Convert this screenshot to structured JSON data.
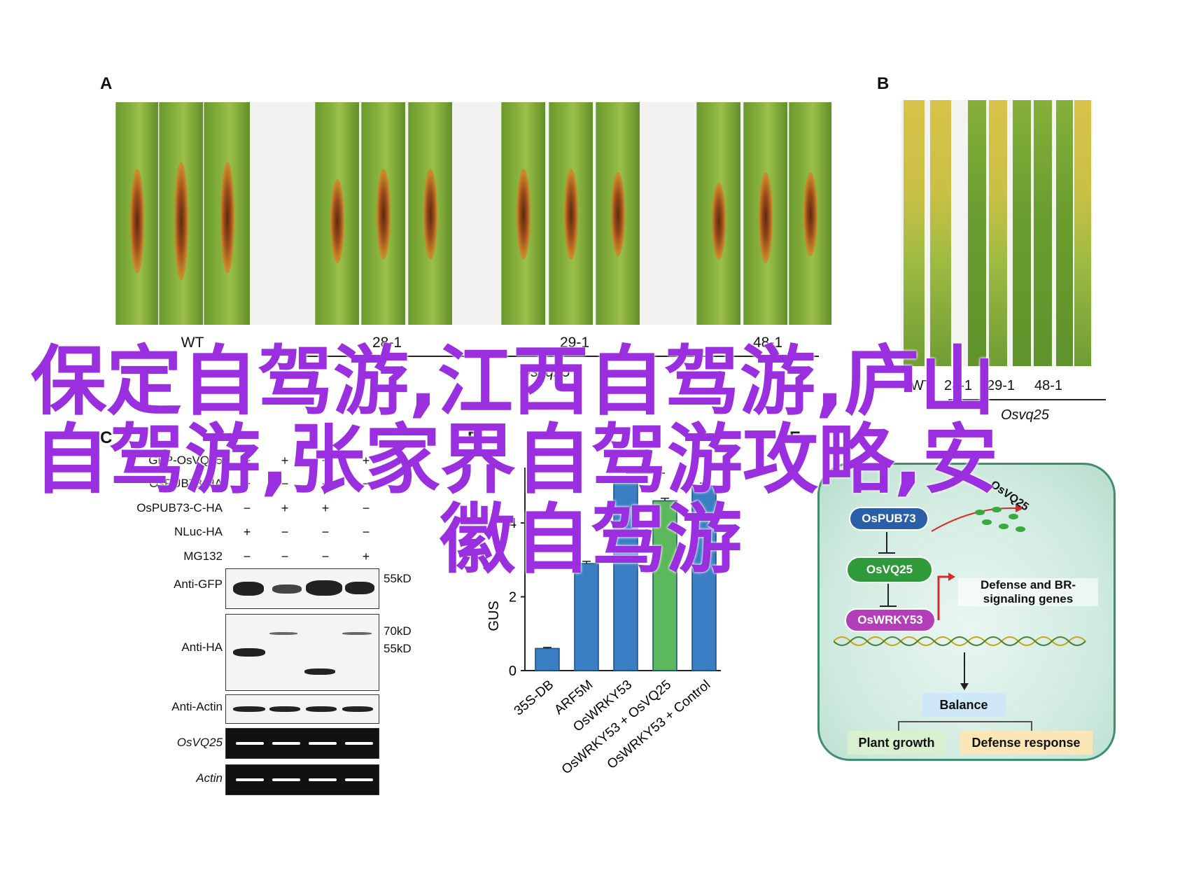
{
  "panels": {
    "a": "A",
    "b": "B",
    "c": "C",
    "d": "D",
    "e": "E"
  },
  "panel_a": {
    "genotypes": [
      "WT",
      "28-1",
      "29-1",
      "48-1"
    ],
    "group_label": "Osvq25"
  },
  "panel_b": {
    "genotypes": [
      "WT",
      "28-1",
      "29-1",
      "48-1"
    ],
    "group_label": "Osvq25"
  },
  "panel_c": {
    "conditions": [
      {
        "label": "GFP-OsVQ25",
        "signs": [
          "+",
          "+",
          "+",
          "+"
        ]
      },
      {
        "label": "OsPUB73-HA",
        "signs": [
          "+",
          "−",
          "−",
          "−"
        ]
      },
      {
        "label": "OsPUB73-C-HA",
        "signs": [
          "−",
          "+",
          "+",
          "−"
        ]
      },
      {
        "label": "NLuc-HA",
        "signs": [
          "+",
          "−",
          "−",
          "−"
        ]
      },
      {
        "label": "MG132",
        "signs": [
          "−",
          "−",
          "−",
          "+"
        ]
      }
    ],
    "blots": [
      {
        "label": "Anti-GFP",
        "markers": [
          "55kD"
        ]
      },
      {
        "label": "Anti-HA",
        "markers": [
          "70kD",
          "55kD"
        ]
      },
      {
        "label": "Anti-Actin",
        "markers": []
      },
      {
        "label": "OsVQ25",
        "markers": []
      },
      {
        "label": "Actin",
        "markers": []
      }
    ]
  },
  "chart_data": {
    "type": "bar",
    "categories": [
      "35S-DB",
      "ARF5M",
      "OsWRKY53",
      "OsWRKY53 + OsVQ25",
      "OsWRKY53 + Control"
    ],
    "values": [
      0.6,
      2.9,
      5.1,
      4.6,
      5.0
    ],
    "errors": [
      0.03,
      0.06,
      0.08,
      0.07,
      0.08
    ],
    "colors": [
      "#3a7fc4",
      "#3a7fc4",
      "#3a7fc4",
      "#5cb85c",
      "#3a7fc4"
    ],
    "ylabel": "GUS",
    "yticks": [
      0,
      2,
      4
    ],
    "ylim": [
      0,
      5.5
    ],
    "significance": "**"
  },
  "panel_e": {
    "nodes": {
      "pub73": "OsPUB73",
      "vq25": "OsVQ25",
      "wrky53": "OsWRKY53",
      "vq25_degraded": "OsVQ25",
      "genes": "Defense and BR-\nsignaling genes",
      "balance": "Balance",
      "growth": "Plant growth",
      "defense": "Defense response"
    },
    "colors": {
      "pub73": "#2a5fa8",
      "vq25": "#2e9a3a",
      "wrky53": "#b33fb8",
      "growth_box": "#d8f0d0",
      "defense_box": "#fbe6b8",
      "balance_box": "#cfe8f7"
    }
  },
  "overlay": {
    "line1": "保定自驾游,江西自驾游,庐山",
    "line2": "自驾游,张家界自驾游攻略,安",
    "line3": "徽自驾游"
  }
}
